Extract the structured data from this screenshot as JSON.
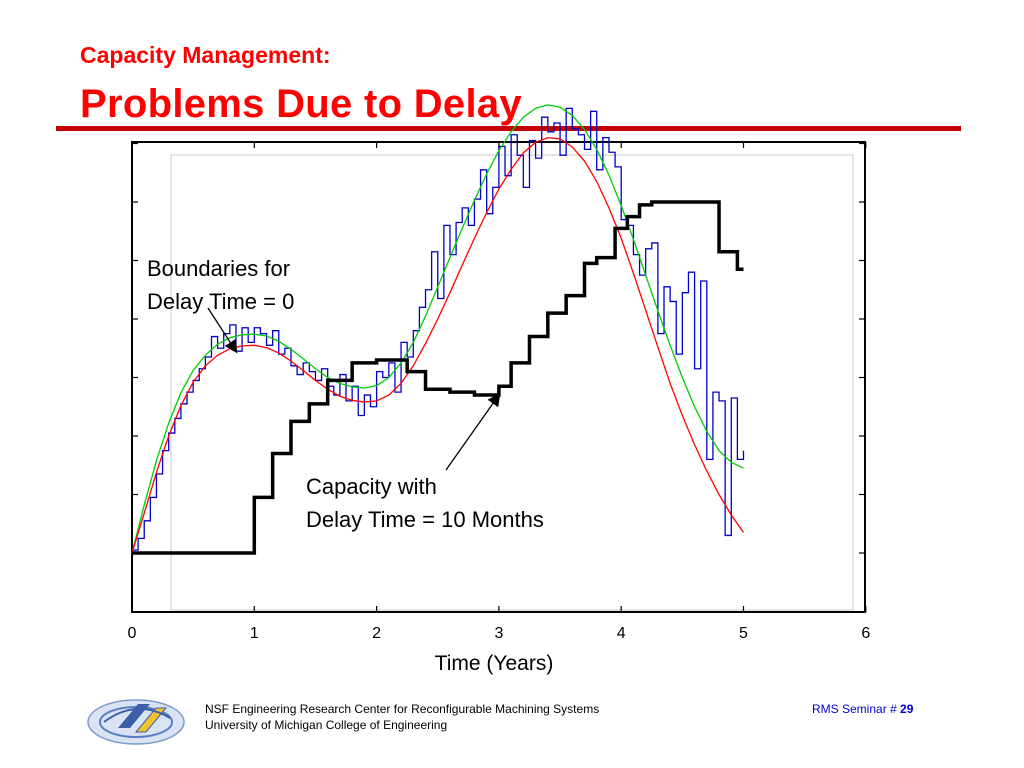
{
  "slide": {
    "subtitle": "Capacity Management:",
    "title": "Problems Due to Delay"
  },
  "colors": {
    "title": "#ff0000",
    "rule": "#c40000",
    "demand_step": "#0000cc",
    "green_boundary": "#00cc00",
    "red_boundary": "#ff0000",
    "capacity": "#000000",
    "footer_right": "#0000cc"
  },
  "chart_data": {
    "type": "line",
    "xlabel": "Time (Years)",
    "ylabel": "",
    "xlim": [
      0,
      6
    ],
    "x_ticks": [
      "0",
      "1",
      "2",
      "3",
      "4",
      "5",
      "6"
    ],
    "grid": false,
    "annotations": [
      {
        "lines": [
          "Boundaries for",
          "Delay Time = 0"
        ],
        "target_x": 0.85,
        "target_y": 3.45
      },
      {
        "lines": [
          "Capacity with",
          "Delay Time = 10 Months"
        ],
        "target_x": 3.0,
        "target_y": 2.7
      }
    ],
    "series": [
      {
        "style": "step",
        "color": "#0000cc",
        "x": [
          0.0,
          0.05,
          0.1,
          0.15,
          0.2,
          0.25,
          0.3,
          0.35,
          0.4,
          0.45,
          0.5,
          0.55,
          0.6,
          0.65,
          0.7,
          0.75,
          0.8,
          0.85,
          0.9,
          0.95,
          1.0,
          1.05,
          1.1,
          1.15,
          1.2,
          1.25,
          1.3,
          1.35,
          1.4,
          1.45,
          1.5,
          1.55,
          1.6,
          1.65,
          1.7,
          1.75,
          1.8,
          1.85,
          1.9,
          1.95,
          2.0,
          2.05,
          2.1,
          2.15,
          2.2,
          2.25,
          2.3,
          2.35,
          2.4,
          2.45,
          2.5,
          2.55,
          2.6,
          2.65,
          2.7,
          2.75,
          2.8,
          2.85,
          2.9,
          2.95,
          3.0,
          3.05,
          3.1,
          3.15,
          3.2,
          3.25,
          3.3,
          3.35,
          3.4,
          3.45,
          3.5,
          3.55,
          3.6,
          3.65,
          3.7,
          3.75,
          3.8,
          3.85,
          3.9,
          3.95,
          4.0,
          4.05,
          4.1,
          4.15,
          4.2,
          4.25,
          4.3,
          4.35,
          4.4,
          4.45,
          4.5,
          4.55,
          4.6,
          4.65,
          4.7,
          4.75,
          4.8,
          4.85,
          4.9,
          4.95,
          5.0
        ],
        "y": [
          0.05,
          0.25,
          0.55,
          0.95,
          1.35,
          1.75,
          2.05,
          2.3,
          2.55,
          2.75,
          2.95,
          3.15,
          3.35,
          3.7,
          3.5,
          3.75,
          3.9,
          3.45,
          3.85,
          3.6,
          3.85,
          3.75,
          3.55,
          3.8,
          3.4,
          3.5,
          3.2,
          3.05,
          3.25,
          3.1,
          2.95,
          3.15,
          2.85,
          2.7,
          3.05,
          2.6,
          2.85,
          2.35,
          2.7,
          2.5,
          3.1,
          3.0,
          3.25,
          2.75,
          3.6,
          3.35,
          3.8,
          4.2,
          4.5,
          5.15,
          4.35,
          5.6,
          5.1,
          5.65,
          5.9,
          5.6,
          6.05,
          6.55,
          5.8,
          6.25,
          6.95,
          6.45,
          7.15,
          6.8,
          6.25,
          7.05,
          6.75,
          7.45,
          7.2,
          7.35,
          6.8,
          7.6,
          7.25,
          7.15,
          6.9,
          7.55,
          6.55,
          7.1,
          6.85,
          6.6,
          5.7,
          5.6,
          5.1,
          4.75,
          5.2,
          5.3,
          3.75,
          4.55,
          4.3,
          3.4,
          4.45,
          4.8,
          3.15,
          4.65,
          1.6,
          2.75,
          2.6,
          0.3,
          2.65,
          1.6,
          1.75
        ]
      },
      {
        "style": "smooth",
        "color": "#00cc00",
        "x": [
          0.0,
          0.1,
          0.2,
          0.3,
          0.4,
          0.5,
          0.6,
          0.7,
          0.8,
          0.9,
          1.0,
          1.1,
          1.2,
          1.3,
          1.4,
          1.5,
          1.6,
          1.7,
          1.8,
          1.9,
          2.0,
          2.1,
          2.2,
          2.3,
          2.4,
          2.5,
          2.6,
          2.7,
          2.8,
          2.9,
          3.0,
          3.1,
          3.2,
          3.3,
          3.4,
          3.5,
          3.6,
          3.7,
          3.8,
          3.9,
          4.0,
          4.1,
          4.2,
          4.3,
          4.4,
          4.5,
          4.6,
          4.7,
          4.8,
          4.9,
          5.0
        ],
        "y": [
          0.0,
          0.82,
          1.58,
          2.22,
          2.74,
          3.12,
          3.38,
          3.57,
          3.68,
          3.73,
          3.74,
          3.71,
          3.62,
          3.48,
          3.32,
          3.15,
          3.0,
          2.9,
          2.84,
          2.82,
          2.86,
          3.0,
          3.25,
          3.6,
          4.05,
          4.55,
          5.05,
          5.55,
          6.03,
          6.48,
          6.88,
          7.2,
          7.45,
          7.6,
          7.66,
          7.62,
          7.48,
          7.24,
          6.9,
          6.46,
          5.94,
          5.36,
          4.75,
          4.14,
          3.55,
          3.0,
          2.5,
          2.08,
          1.75,
          1.55,
          1.45
        ]
      },
      {
        "style": "smooth",
        "color": "#ff0000",
        "x": [
          0.0,
          0.1,
          0.2,
          0.3,
          0.4,
          0.5,
          0.6,
          0.7,
          0.8,
          0.9,
          1.0,
          1.1,
          1.2,
          1.3,
          1.4,
          1.5,
          1.6,
          1.7,
          1.8,
          1.9,
          2.0,
          2.1,
          2.2,
          2.3,
          2.4,
          2.5,
          2.6,
          2.7,
          2.8,
          2.9,
          3.0,
          3.1,
          3.2,
          3.3,
          3.4,
          3.5,
          3.6,
          3.7,
          3.8,
          3.9,
          4.0,
          4.1,
          4.2,
          4.3,
          4.4,
          4.5,
          4.6,
          4.7,
          4.8,
          4.9,
          5.0
        ],
        "y": [
          0.0,
          0.68,
          1.38,
          2.0,
          2.52,
          2.92,
          3.2,
          3.38,
          3.49,
          3.54,
          3.55,
          3.51,
          3.42,
          3.28,
          3.12,
          2.95,
          2.8,
          2.68,
          2.61,
          2.58,
          2.6,
          2.7,
          2.9,
          3.2,
          3.58,
          4.0,
          4.45,
          4.92,
          5.38,
          5.82,
          6.22,
          6.56,
          6.84,
          7.02,
          7.1,
          7.08,
          6.94,
          6.7,
          6.35,
          5.9,
          5.38,
          4.78,
          4.15,
          3.52,
          2.9,
          2.35,
          1.85,
          1.4,
          1.0,
          0.65,
          0.35
        ]
      },
      {
        "style": "step",
        "color": "#000000",
        "x": [
          0.0,
          1.0,
          1.15,
          1.3,
          1.45,
          1.6,
          1.8,
          2.0,
          2.25,
          2.4,
          2.6,
          2.8,
          3.0,
          3.1,
          3.25,
          3.4,
          3.55,
          3.7,
          3.8,
          3.95,
          4.05,
          4.15,
          4.25,
          4.5,
          4.8,
          4.95,
          5.0
        ],
        "y": [
          0.0,
          0.95,
          1.7,
          2.25,
          2.55,
          2.95,
          3.25,
          3.3,
          3.1,
          2.8,
          2.75,
          2.7,
          2.85,
          3.25,
          3.7,
          4.1,
          4.4,
          4.95,
          5.05,
          5.55,
          5.75,
          5.95,
          6.0,
          6.0,
          5.15,
          4.85,
          4.85
        ]
      }
    ]
  },
  "footer": {
    "line1": "NSF Engineering Research Center for Reconfigurable Machining Systems",
    "line2": "University of Michigan College of Engineering",
    "seminar_label": "RMS Seminar # ",
    "page_number": "29"
  },
  "logo": {
    "icon": "rms-logo-icon"
  }
}
